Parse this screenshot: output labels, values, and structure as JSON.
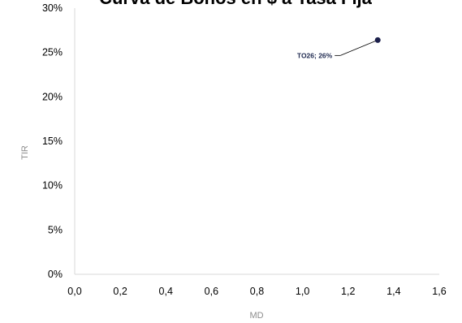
{
  "chart_data": {
    "type": "scatter",
    "title": "Curva de Bonos en $ a Tasa Fija",
    "xlabel": "MD",
    "ylabel": "TIR",
    "xlim": [
      0,
      1.6
    ],
    "ylim": [
      0,
      0.3
    ],
    "x_ticks": [
      "0,0",
      "0,2",
      "0,4",
      "0,6",
      "0,8",
      "1,0",
      "1,2",
      "1,4",
      "1,6"
    ],
    "y_ticks": [
      "0%",
      "5%",
      "10%",
      "15%",
      "20%",
      "25%",
      "30%"
    ],
    "grid": false,
    "points": [
      {
        "x": 1.33,
        "y": 0.264,
        "label": "TO26; 26%"
      }
    ],
    "colors": {
      "point": "#1b1f4b",
      "axis": "#d9d9d9",
      "leader": "#000000"
    }
  }
}
